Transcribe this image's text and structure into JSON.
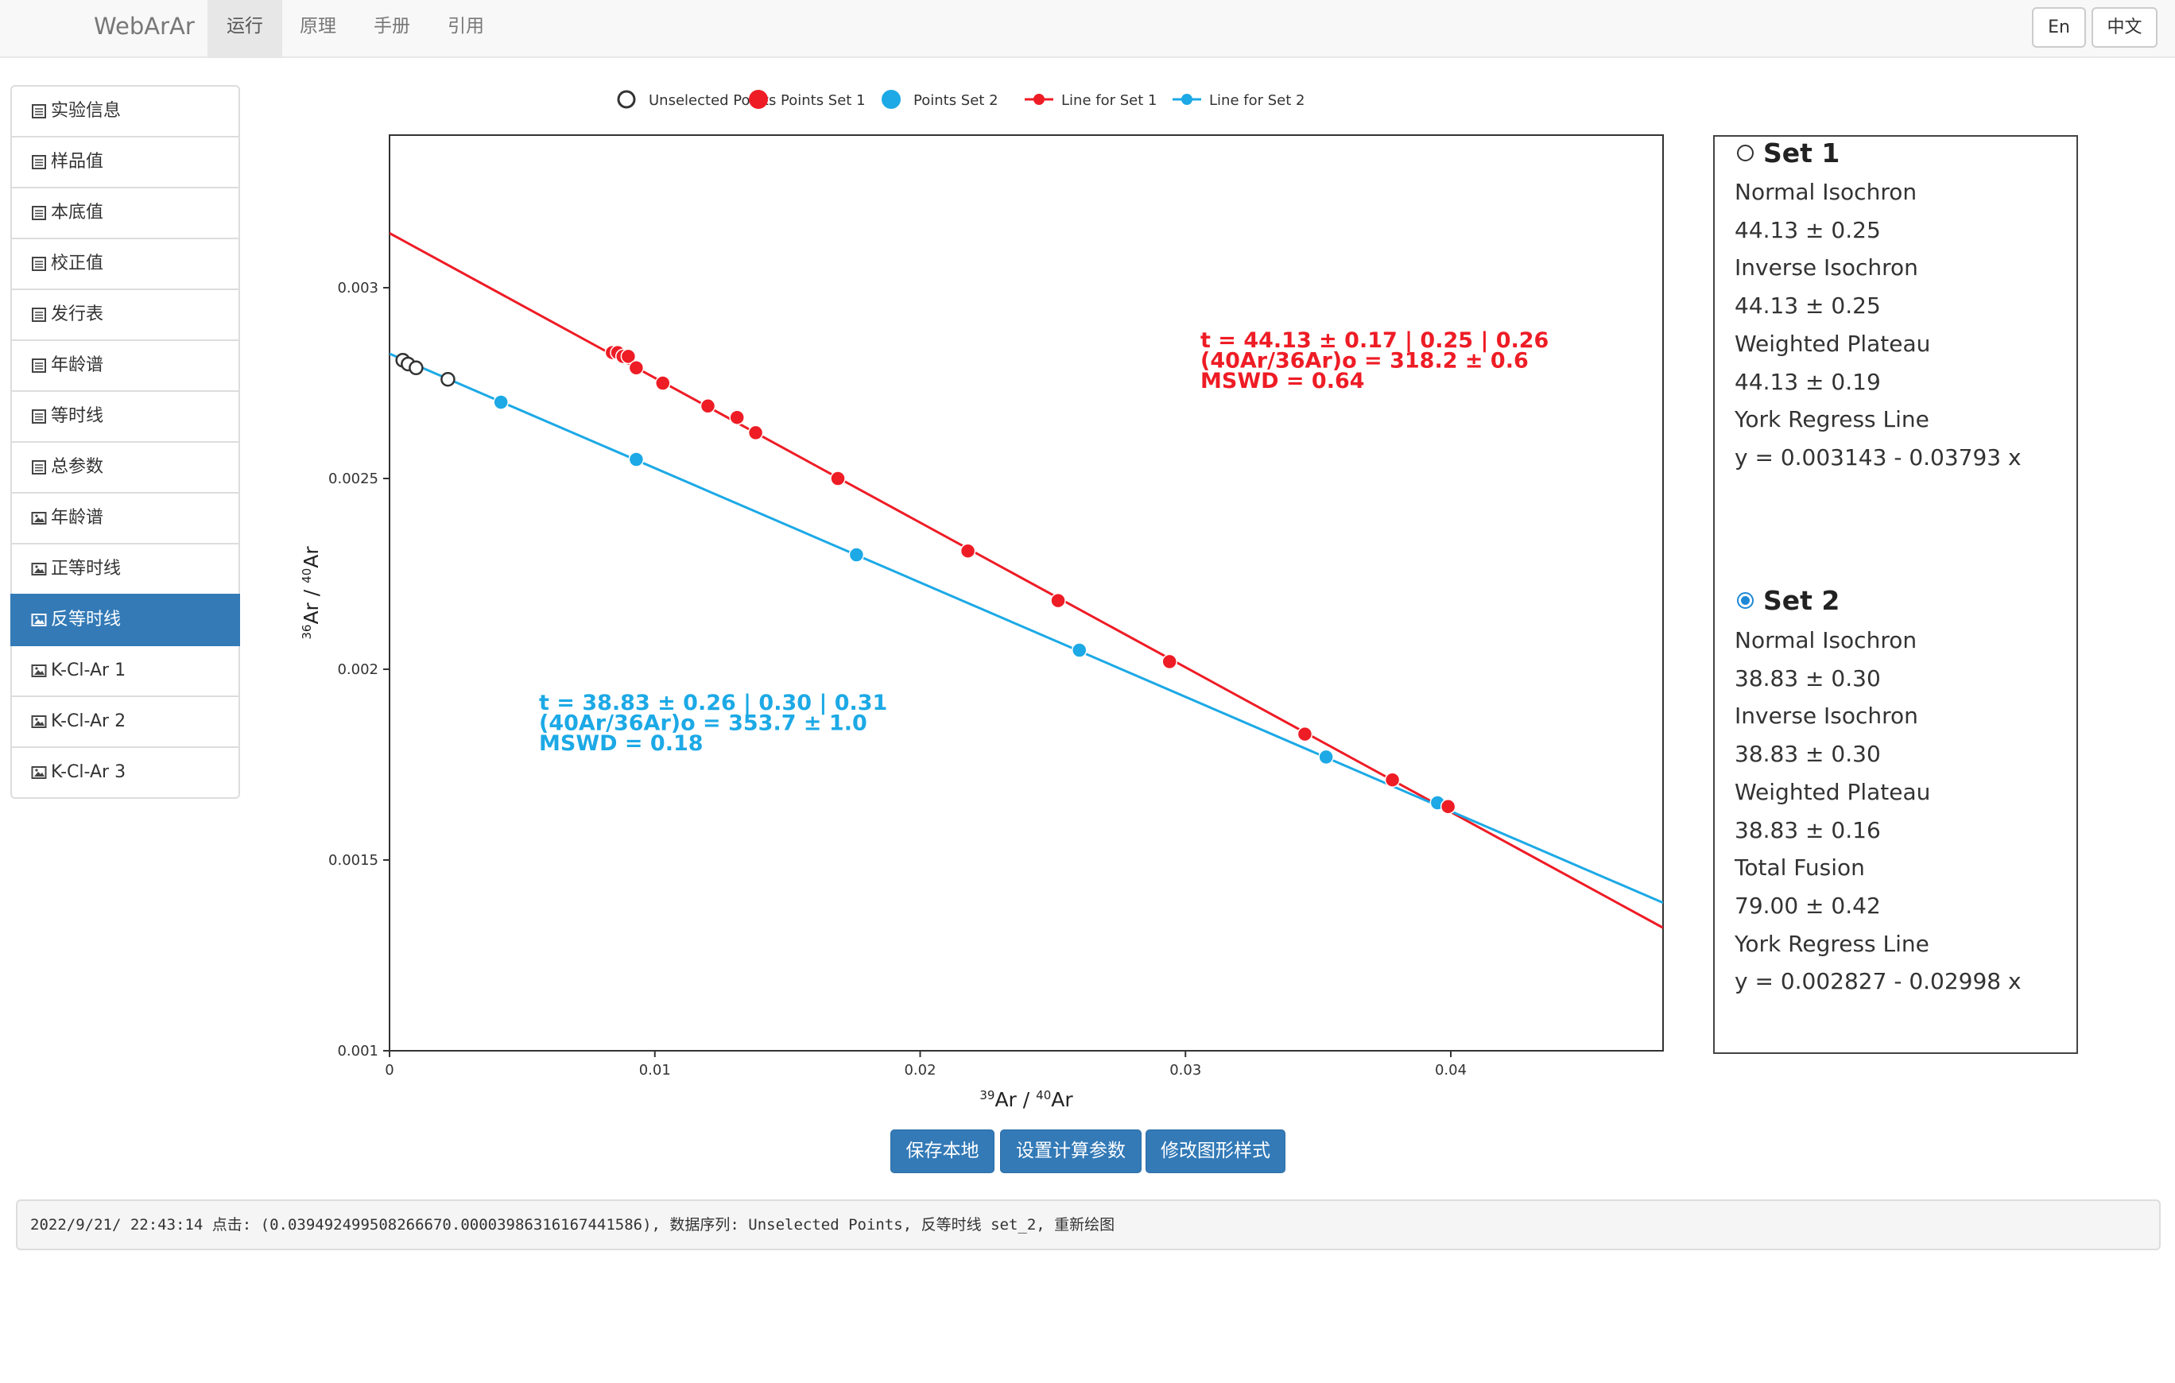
{
  "nav": {
    "brand": "WebArAr",
    "items": [
      "运行",
      "原理",
      "手册",
      "引用"
    ],
    "active_index": 0,
    "lang": [
      "En",
      "中文"
    ]
  },
  "sidebar": {
    "items": [
      {
        "label": "实验信息",
        "icon": "table-icon"
      },
      {
        "label": "样品值",
        "icon": "table-icon"
      },
      {
        "label": "本底值",
        "icon": "table-icon"
      },
      {
        "label": "校正值",
        "icon": "table-icon"
      },
      {
        "label": "发行表",
        "icon": "table-icon"
      },
      {
        "label": "年龄谱",
        "icon": "table-icon"
      },
      {
        "label": "等时线",
        "icon": "table-icon"
      },
      {
        "label": "总参数",
        "icon": "table-icon"
      },
      {
        "label": "年龄谱",
        "icon": "picture-icon"
      },
      {
        "label": "正等时线",
        "icon": "picture-icon"
      },
      {
        "label": "反等时线",
        "icon": "picture-icon"
      },
      {
        "label": "K-Cl-Ar 1",
        "icon": "picture-icon"
      },
      {
        "label": "K-Cl-Ar 2",
        "icon": "picture-icon"
      },
      {
        "label": "K-Cl-Ar 3",
        "icon": "picture-icon"
      }
    ],
    "active_index": 10
  },
  "chart_data": {
    "type": "scatter",
    "xlabel": "39Ar / 40Ar",
    "ylabel": "36Ar / 40Ar",
    "xlim": [
      0,
      0.048
    ],
    "ylim": [
      0.001,
      0.0034
    ],
    "x_ticks": [
      "0",
      "0.01",
      "0.02",
      "0.03",
      "0.04"
    ],
    "y_ticks": [
      "0.001",
      "0.0015",
      "0.002",
      "0.0025",
      "0.003"
    ],
    "legend": [
      "Unselected Points",
      "Points Set 1",
      "Points Set 2",
      "Line for Set 1",
      "Line for Set 2"
    ],
    "legend_position": "top",
    "colors": {
      "unselected": "#333333",
      "set1": "#ee1c25",
      "set2": "#1ca9e6"
    },
    "series": [
      {
        "name": "Unselected Points",
        "points": [
          [
            0.0005,
            0.00281
          ],
          [
            0.0007,
            0.0028
          ],
          [
            0.001,
            0.00279
          ],
          [
            0.0022,
            0.00276
          ]
        ]
      },
      {
        "name": "Points Set 1",
        "points": [
          [
            0.0084,
            0.00283
          ],
          [
            0.0086,
            0.00283
          ],
          [
            0.0088,
            0.00282
          ],
          [
            0.009,
            0.00282
          ],
          [
            0.0093,
            0.00279
          ],
          [
            0.0103,
            0.00275
          ],
          [
            0.012,
            0.00269
          ],
          [
            0.0131,
            0.00266
          ],
          [
            0.0138,
            0.00262
          ],
          [
            0.0169,
            0.0025
          ],
          [
            0.0218,
            0.00231
          ],
          [
            0.0252,
            0.00218
          ],
          [
            0.0294,
            0.00202
          ],
          [
            0.0345,
            0.00183
          ],
          [
            0.0378,
            0.00171
          ],
          [
            0.0399,
            0.00164
          ]
        ]
      },
      {
        "name": "Points Set 2",
        "points": [
          [
            0.0042,
            0.0027
          ],
          [
            0.0093,
            0.00255
          ],
          [
            0.0176,
            0.0023
          ],
          [
            0.026,
            0.00205
          ],
          [
            0.0353,
            0.00177
          ],
          [
            0.0395,
            0.00165
          ]
        ]
      },
      {
        "name": "Line for Set 1",
        "intercept": 0.003143,
        "slope": -0.03793
      },
      {
        "name": "Line for Set 2",
        "intercept": 0.002827,
        "slope": -0.02998
      }
    ],
    "annotations": {
      "set1": [
        "t = 44.13 ± 0.17 | 0.25 | 0.26",
        "(40Ar/36Ar)o = 318.2 ± 0.6",
        "MSWD = 0.64"
      ],
      "set2": [
        "t = 38.83 ± 0.26 | 0.30 | 0.31",
        "(40Ar/36Ar)o = 353.7 ± 1.0",
        "MSWD = 0.18"
      ]
    }
  },
  "results": {
    "set1": {
      "title": "Set 1",
      "checked": false,
      "lines": [
        "Normal Isochron",
        "44.13 ± 0.25",
        "Inverse Isochron",
        "44.13 ± 0.25",
        "Weighted Plateau",
        "44.13 ± 0.19",
        "York Regress Line",
        "y = 0.003143 - 0.03793 x"
      ]
    },
    "set2": {
      "title": "Set 2",
      "checked": true,
      "lines": [
        "Normal Isochron",
        "38.83 ± 0.30",
        "Inverse Isochron",
        "38.83 ± 0.30",
        "Weighted Plateau",
        "38.83 ± 0.16",
        "Total Fusion",
        "79.00 ± 0.42",
        "York Regress Line",
        "y = 0.002827 - 0.02998 x"
      ]
    }
  },
  "buttons": {
    "save": "保存本地",
    "params": "设置计算参数",
    "style": "修改图形样式"
  },
  "status": "2022/9/21/ 22:43:14 点击: (0.039492499508266670.00003986316167441586), 数据序列: Unselected Points,  反等时线 set_2, 重新绘图"
}
